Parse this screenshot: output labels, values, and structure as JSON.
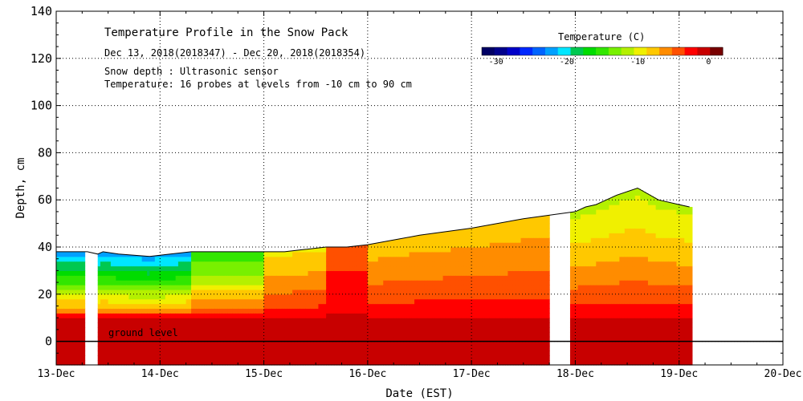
{
  "chart_data": {
    "type": "heatmap",
    "title_lines": [
      "Temperature Profile in the Snow Pack",
      "Dec 13, 2018(2018347) - Dec 20, 2018(2018354)",
      "Snow depth : Ultrasonic sensor",
      "Temperature: 16 probes at levels from -10 cm to 90 cm"
    ],
    "xlabel": "Date (EST)",
    "ylabel": "Depth, cm",
    "x_ticks": [
      "13-Dec",
      "14-Dec",
      "15-Dec",
      "16-Dec",
      "17-Dec",
      "18-Dec",
      "19-Dec",
      "20-Dec"
    ],
    "xlim_days": [
      13,
      20
    ],
    "ylim": [
      -10,
      140
    ],
    "y_ticks": [
      0,
      20,
      40,
      60,
      80,
      100,
      120,
      140
    ],
    "grid": true,
    "annotation": "ground level",
    "legend": {
      "title": "Temperature (C)",
      "tick_labels": [
        "-30",
        "-20",
        "-10",
        "0"
      ],
      "min": -32,
      "max": 2,
      "colors": [
        "#000064",
        "#00008c",
        "#0000c8",
        "#0028ff",
        "#0064ff",
        "#00a0ff",
        "#00e6ff",
        "#00c850",
        "#00dc00",
        "#32e600",
        "#78f000",
        "#b4f000",
        "#f0f000",
        "#ffc800",
        "#ff8c00",
        "#ff5000",
        "#ff0000",
        "#c80000",
        "#780000"
      ]
    },
    "snow_depth_series": {
      "x": [
        13.0,
        13.3,
        13.4,
        13.45,
        13.6,
        13.9,
        14.1,
        14.3,
        14.6,
        14.9,
        15.2,
        15.4,
        15.6,
        15.8,
        16.0,
        16.5,
        17.0,
        17.5,
        18.0,
        18.1,
        18.2,
        18.3,
        18.4,
        18.6,
        18.8,
        19.0,
        19.1
      ],
      "y": [
        38,
        38,
        37,
        38,
        37,
        36,
        37,
        38,
        38,
        38,
        38,
        39,
        40,
        40,
        41,
        45,
        48,
        52,
        55,
        57,
        58,
        60,
        62,
        65,
        60,
        58,
        57
      ]
    },
    "ground_temperature_c": 0,
    "data_gaps_days": [
      [
        13.28,
        13.4
      ],
      [
        17.76,
        17.95
      ]
    ]
  }
}
